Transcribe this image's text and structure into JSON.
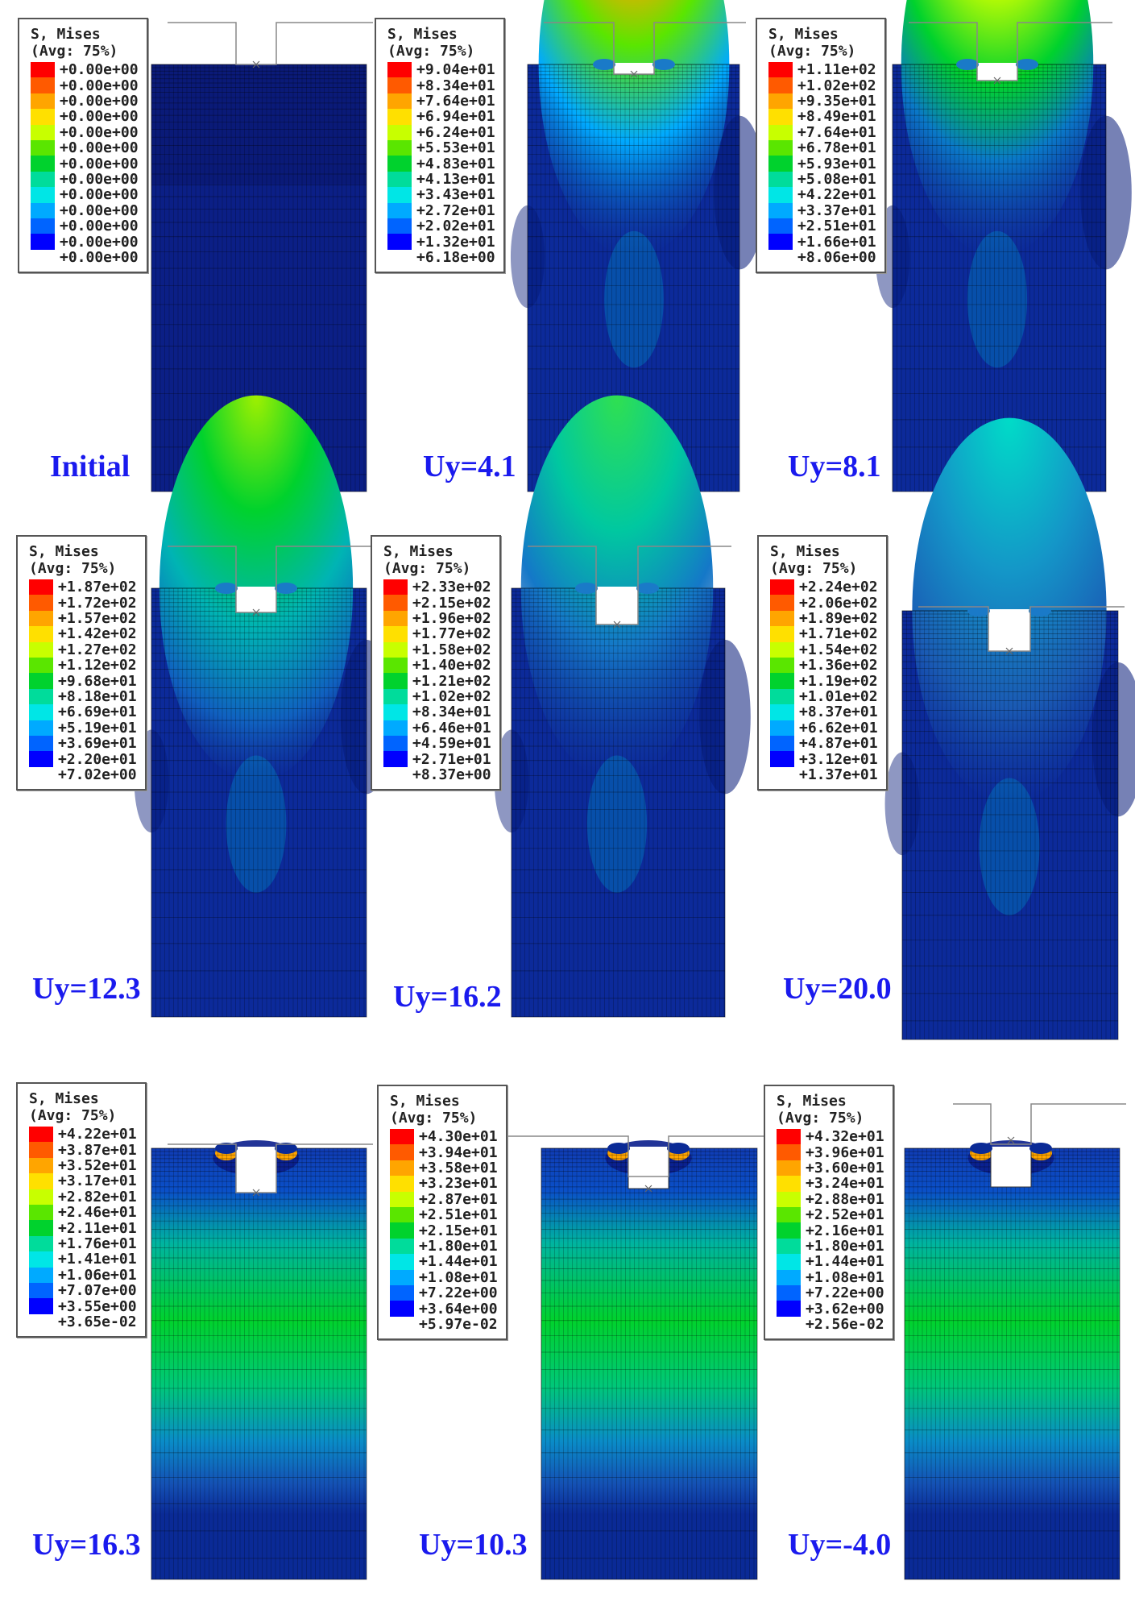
{
  "legend_colors": [
    "#ff0000",
    "#ff5a00",
    "#ffa500",
    "#ffe000",
    "#c8ff00",
    "#5ae600",
    "#00d22d",
    "#00dc9b",
    "#00e6e6",
    "#00aaff",
    "#0064ff",
    "#0000ff"
  ],
  "panels": [
    {
      "caption": "Initial",
      "legend": {
        "title1": "S, Mises",
        "title2": "(Avg: 75%)",
        "values": [
          "+0.00e+00",
          "+0.00e+00",
          "+0.00e+00",
          "+0.00e+00",
          "+0.00e+00",
          "+0.00e+00",
          "+0.00e+00",
          "+0.00e+00",
          "+0.00e+00",
          "+0.00e+00",
          "+0.00e+00",
          "+0.00e+00",
          "+0.00e+00"
        ]
      }
    },
    {
      "caption": "Uy=4.1",
      "legend": {
        "title1": "S, Mises",
        "title2": "(Avg: 75%)",
        "values": [
          "+9.04e+01",
          "+8.34e+01",
          "+7.64e+01",
          "+6.94e+01",
          "+6.24e+01",
          "+5.53e+01",
          "+4.83e+01",
          "+4.13e+01",
          "+3.43e+01",
          "+2.72e+01",
          "+2.02e+01",
          "+1.32e+01",
          "+6.18e+00"
        ]
      }
    },
    {
      "caption": "Uy=8.1",
      "legend": {
        "title1": "S, Mises",
        "title2": "(Avg: 75%)",
        "values": [
          "+1.11e+02",
          "+1.02e+02",
          "+9.35e+01",
          "+8.49e+01",
          "+7.64e+01",
          "+6.78e+01",
          "+5.93e+01",
          "+5.08e+01",
          "+4.22e+01",
          "+3.37e+01",
          "+2.51e+01",
          "+1.66e+01",
          "+8.06e+00"
        ]
      }
    },
    {
      "caption": "Uy=12.3",
      "legend": {
        "title1": "S, Mises",
        "title2": "(Avg: 75%)",
        "values": [
          "+1.87e+02",
          "+1.72e+02",
          "+1.57e+02",
          "+1.42e+02",
          "+1.27e+02",
          "+1.12e+02",
          "+9.68e+01",
          "+8.18e+01",
          "+6.69e+01",
          "+5.19e+01",
          "+3.69e+01",
          "+2.20e+01",
          "+7.02e+00"
        ]
      }
    },
    {
      "caption": "Uy=16.2",
      "legend": {
        "title1": "S, Mises",
        "title2": "(Avg: 75%)",
        "values": [
          "+2.33e+02",
          "+2.15e+02",
          "+1.96e+02",
          "+1.77e+02",
          "+1.58e+02",
          "+1.40e+02",
          "+1.21e+02",
          "+1.02e+02",
          "+8.34e+01",
          "+6.46e+01",
          "+4.59e+01",
          "+2.71e+01",
          "+8.37e+00"
        ]
      }
    },
    {
      "caption": "Uy=20.0",
      "legend": {
        "title1": "S, Mises",
        "title2": "(Avg: 75%)",
        "values": [
          "+2.24e+02",
          "+2.06e+02",
          "+1.89e+02",
          "+1.71e+02",
          "+1.54e+02",
          "+1.36e+02",
          "+1.19e+02",
          "+1.01e+02",
          "+8.37e+01",
          "+6.62e+01",
          "+4.87e+01",
          "+3.12e+01",
          "+1.37e+01"
        ]
      }
    },
    {
      "caption": "Uy=16.3",
      "legend": {
        "title1": "S, Mises",
        "title2": "(Avg: 75%)",
        "values": [
          "+4.22e+01",
          "+3.87e+01",
          "+3.52e+01",
          "+3.17e+01",
          "+2.82e+01",
          "+2.46e+01",
          "+2.11e+01",
          "+1.76e+01",
          "+1.41e+01",
          "+1.06e+01",
          "+7.07e+00",
          "+3.55e+00",
          "+3.65e-02"
        ]
      }
    },
    {
      "caption": "Uy=10.3",
      "legend": {
        "title1": "S, Mises",
        "title2": "(Avg: 75%)",
        "values": [
          "+4.30e+01",
          "+3.94e+01",
          "+3.58e+01",
          "+3.23e+01",
          "+2.87e+01",
          "+2.51e+01",
          "+2.15e+01",
          "+1.80e+01",
          "+1.44e+01",
          "+1.08e+01",
          "+7.22e+00",
          "+3.64e+00",
          "+5.97e-02"
        ]
      }
    },
    {
      "caption": "Uy=-4.0",
      "legend": {
        "title1": "S, Mises",
        "title2": "(Avg: 75%)",
        "values": [
          "+4.32e+01",
          "+3.96e+01",
          "+3.60e+01",
          "+3.24e+01",
          "+2.88e+01",
          "+2.52e+01",
          "+2.16e+01",
          "+1.80e+01",
          "+1.44e+01",
          "+1.08e+01",
          "+7.22e+00",
          "+3.62e+00",
          "+2.56e-02"
        ]
      }
    }
  ]
}
